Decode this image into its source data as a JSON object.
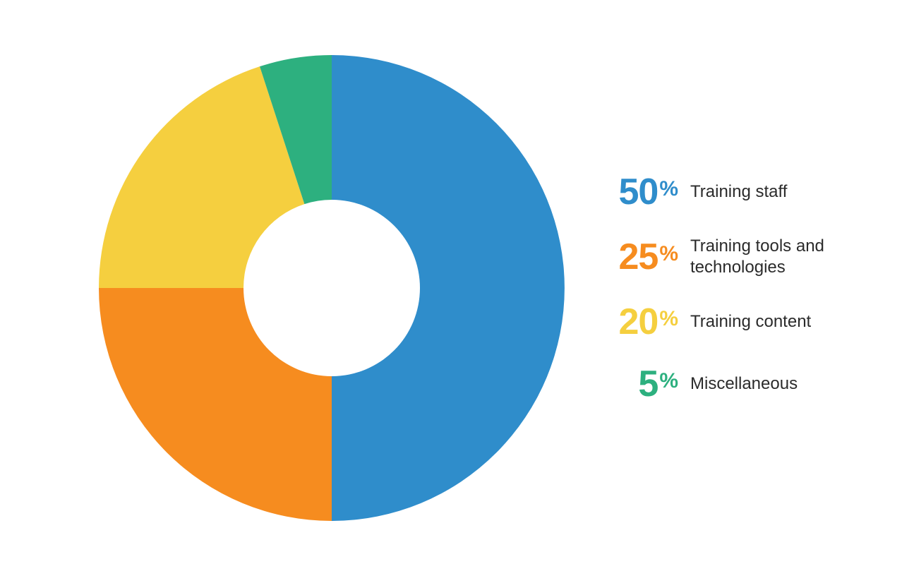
{
  "chart": {
    "type": "donut",
    "background_color": "#ffffff",
    "outer_radius": 330,
    "inner_radius": 125,
    "start_angle_deg": 0,
    "direction": "clockwise",
    "slice_order": [
      "staff",
      "tools",
      "content",
      "misc"
    ],
    "segments": {
      "staff": {
        "value": 50,
        "color": "#2f8dcb",
        "label": "Training staff"
      },
      "tools": {
        "value": 25,
        "color": "#f68c1f",
        "label": "Training tools and technologies"
      },
      "content": {
        "value": 20,
        "color": "#f5cf3f",
        "label": "Training content"
      },
      "misc": {
        "value": 5,
        "color": "#2db07f",
        "label": "Miscellaneous"
      }
    }
  },
  "legend": {
    "label_color": "#2b2b2b",
    "label_fontsize": 24,
    "pct_fontsize_num": 52,
    "pct_fontsize_sym": 30,
    "percent_symbol": "%",
    "items": [
      {
        "key": "staff",
        "pct": "50",
        "label": "Training staff",
        "color": "#2f8dcb"
      },
      {
        "key": "tools",
        "pct": "25",
        "label": "Training tools and technologies",
        "color": "#f68c1f"
      },
      {
        "key": "content",
        "pct": "20",
        "label": "Training content",
        "color": "#f5cf3f"
      },
      {
        "key": "misc",
        "pct": "5",
        "label": "Miscellaneous",
        "color": "#2db07f"
      }
    ]
  }
}
